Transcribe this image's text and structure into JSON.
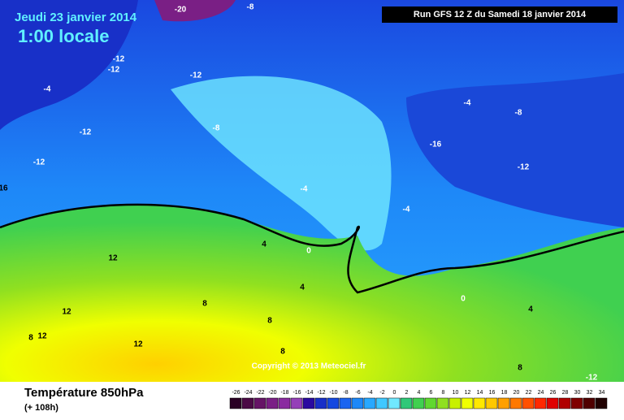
{
  "map": {
    "date": "Jeudi 23 janvier 2014",
    "time": "1:00 locale",
    "run": "Run GFS 12 Z du Samedi 18 janvier 2014",
    "copyright": "Copyright © 2013 Meteociel.fr",
    "contour_labels": [
      -20,
      -8,
      -12,
      -12,
      -12,
      -4,
      -12,
      -8,
      -12,
      16,
      -4,
      -4,
      0,
      4,
      4,
      12,
      12,
      12,
      8,
      8,
      8,
      12,
      8,
      -4,
      -8,
      -16,
      -12,
      0,
      4,
      8,
      -12
    ]
  },
  "legend": {
    "title": "Température 850hPa",
    "subtitle": "(+ 108h)",
    "ticks": [
      -26,
      -24,
      -22,
      -20,
      -18,
      -16,
      -14,
      -12,
      -10,
      -8,
      -6,
      -4,
      -2,
      0,
      2,
      4,
      6,
      8,
      10,
      12,
      14,
      16,
      18,
      20,
      22,
      24,
      26,
      28,
      30,
      32,
      34
    ],
    "colors": [
      "#2a0024",
      "#4b0a45",
      "#661466",
      "#7a1f85",
      "#8a2aa0",
      "#9540b8",
      "#2a0aa0",
      "#1830c8",
      "#1448e0",
      "#1a64f0",
      "#1e88f8",
      "#28a8ff",
      "#40c8ff",
      "#70e8ff",
      "#30c878",
      "#40d050",
      "#60d830",
      "#90e020",
      "#c8f000",
      "#f0ff00",
      "#ffe800",
      "#ffc800",
      "#ffa000",
      "#ff7800",
      "#ff5000",
      "#ff2800",
      "#e00000",
      "#b00000",
      "#800000",
      "#500000",
      "#200000"
    ]
  }
}
